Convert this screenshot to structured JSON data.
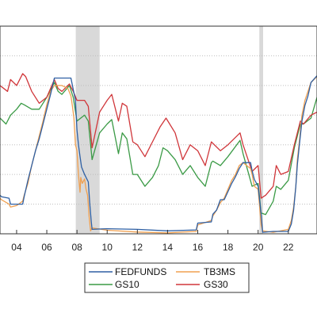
{
  "chart_data": {
    "type": "line",
    "title": "",
    "xlabel": "",
    "ylabel": "",
    "x_tick_labels": [
      "04",
      "06",
      "08",
      "10",
      "12",
      "14",
      "16",
      "18",
      "20",
      "22"
    ],
    "x_tick_years": [
      2004,
      2006,
      2008,
      2010,
      2012,
      2014,
      2016,
      2018,
      2020,
      2022
    ],
    "xlim": [
      2002.9,
      2023.9
    ],
    "ylim": [
      0,
      7
    ],
    "y_gridlines": [
      1,
      2,
      3,
      4,
      5,
      6
    ],
    "grid": true,
    "legend_position": "bottom-center",
    "recession_shading": [
      [
        2007.92,
        2009.5
      ],
      [
        2020.08,
        2020.33
      ]
    ],
    "series": [
      {
        "name": "FEDFUNDS",
        "color": "#2e5fa3",
        "x": [
          2002.9,
          2003.0,
          2003.5,
          2003.6,
          2004.0,
          2004.4,
          2004.5,
          2004.75,
          2005.0,
          2005.25,
          2005.5,
          2005.75,
          2006.0,
          2006.25,
          2006.5,
          2007.0,
          2007.6,
          2007.7,
          2007.8,
          2007.9,
          2008.0,
          2008.1,
          2008.2,
          2008.3,
          2008.5,
          2008.75,
          2008.85,
          2008.95,
          2009.0,
          2010.0,
          2012.0,
          2014.0,
          2015.9,
          2016.0,
          2016.9,
          2017.0,
          2017.25,
          2017.5,
          2017.75,
          2018.0,
          2018.25,
          2018.5,
          2018.75,
          2019.0,
          2019.5,
          2019.6,
          2019.75,
          2020.0,
          2020.2,
          2020.3,
          2021.0,
          2022.0,
          2022.2,
          2022.35,
          2022.5,
          2022.6,
          2022.75,
          2022.9,
          2023.1,
          2023.3,
          2023.5,
          2023.9
        ],
        "values": [
          1.3,
          1.25,
          1.2,
          1.0,
          1.0,
          1.0,
          1.25,
          1.8,
          2.3,
          2.8,
          3.2,
          3.7,
          4.2,
          4.7,
          5.25,
          5.25,
          5.25,
          5.0,
          4.75,
          4.5,
          3.5,
          3.0,
          2.6,
          2.25,
          2.0,
          1.75,
          1.0,
          0.4,
          0.15,
          0.17,
          0.15,
          0.1,
          0.13,
          0.36,
          0.4,
          0.66,
          0.8,
          1.15,
          1.15,
          1.42,
          1.7,
          1.92,
          2.2,
          2.4,
          2.4,
          2.13,
          1.83,
          1.6,
          0.65,
          0.05,
          0.08,
          0.08,
          0.33,
          0.8,
          1.6,
          2.33,
          3.08,
          3.8,
          4.33,
          4.65,
          5.1,
          5.33
        ]
      },
      {
        "name": "TB3MS",
        "color": "#f0a050",
        "x": [
          2002.9,
          2003.0,
          2003.5,
          2003.6,
          2004.0,
          2004.4,
          2004.5,
          2004.75,
          2005.0,
          2005.25,
          2005.5,
          2005.75,
          2006.0,
          2006.25,
          2006.5,
          2007.0,
          2007.4,
          2007.6,
          2007.7,
          2007.8,
          2007.9,
          2008.0,
          2008.1,
          2008.2,
          2008.25,
          2008.35,
          2008.5,
          2008.6,
          2008.7,
          2008.8,
          2008.9,
          2009.0,
          2010.0,
          2012.0,
          2014.0,
          2015.9,
          2016.0,
          2016.9,
          2017.0,
          2017.25,
          2017.5,
          2017.75,
          2018.0,
          2018.25,
          2018.5,
          2018.75,
          2019.0,
          2019.5,
          2019.6,
          2019.75,
          2020.0,
          2020.2,
          2020.3,
          2021.0,
          2022.0,
          2022.2,
          2022.35,
          2022.5,
          2022.6,
          2022.75,
          2022.9,
          2023.1,
          2023.3,
          2023.5,
          2023.9
        ],
        "values": [
          1.2,
          1.15,
          1.0,
          0.9,
          0.95,
          1.1,
          1.3,
          1.7,
          2.3,
          2.8,
          3.3,
          3.8,
          4.35,
          4.8,
          5.0,
          5.0,
          4.9,
          4.65,
          4.3,
          3.9,
          3.0,
          2.8,
          2.0,
          1.4,
          1.9,
          1.7,
          1.85,
          1.5,
          1.3,
          0.6,
          0.1,
          0.2,
          0.12,
          0.06,
          0.03,
          0.08,
          0.3,
          0.45,
          0.6,
          0.8,
          1.05,
          1.2,
          1.5,
          1.8,
          2.0,
          2.3,
          2.4,
          2.2,
          2.0,
          1.6,
          1.5,
          0.3,
          0.1,
          0.05,
          0.15,
          0.45,
          0.9,
          1.6,
          2.5,
          3.2,
          4.0,
          4.5,
          4.8,
          5.1,
          5.3
        ]
      },
      {
        "name": "GS10",
        "color": "#3a9a45",
        "x": [
          2002.9,
          2003.3,
          2003.6,
          2004.0,
          2004.3,
          2004.5,
          2005.0,
          2005.5,
          2006.0,
          2006.5,
          2006.75,
          2007.0,
          2007.5,
          2007.75,
          2008.0,
          2008.5,
          2008.75,
          2009.0,
          2009.5,
          2010.0,
          2010.3,
          2010.75,
          2011.0,
          2011.3,
          2011.7,
          2012.0,
          2012.5,
          2013.0,
          2013.4,
          2013.7,
          2014.0,
          2014.5,
          2015.0,
          2015.5,
          2016.0,
          2016.5,
          2016.9,
          2017.0,
          2017.5,
          2018.0,
          2018.8,
          2019.0,
          2019.6,
          2020.0,
          2020.2,
          2020.5,
          2021.0,
          2021.2,
          2021.5,
          2022.0,
          2022.4,
          2022.8,
          2023.0,
          2023.5,
          2023.9
        ],
        "values": [
          3.9,
          3.7,
          4.0,
          4.2,
          4.4,
          4.35,
          4.2,
          4.2,
          4.6,
          5.1,
          4.8,
          4.7,
          5.0,
          4.6,
          3.8,
          4.0,
          3.8,
          2.5,
          3.4,
          3.7,
          3.85,
          2.7,
          3.4,
          3.2,
          2.0,
          2.0,
          1.6,
          1.9,
          2.3,
          2.9,
          2.8,
          2.5,
          2.0,
          2.3,
          1.9,
          1.6,
          2.4,
          2.45,
          2.3,
          2.6,
          3.15,
          2.7,
          1.6,
          1.7,
          0.7,
          0.65,
          1.1,
          1.6,
          1.5,
          1.8,
          2.9,
          3.7,
          3.7,
          3.9,
          4.6
        ]
      },
      {
        "name": "GS30",
        "color": "#d0363a",
        "x": [
          2002.9,
          2003.4,
          2003.6,
          2004.0,
          2004.4,
          2004.6,
          2005.0,
          2005.5,
          2006.0,
          2006.5,
          2006.75,
          2007.0,
          2007.5,
          2007.75,
          2008.0,
          2008.5,
          2008.75,
          2009.0,
          2009.5,
          2010.0,
          2010.3,
          2010.75,
          2011.0,
          2011.3,
          2011.7,
          2012.0,
          2012.5,
          2013.0,
          2013.5,
          2013.9,
          2014.5,
          2015.0,
          2015.5,
          2016.0,
          2016.5,
          2016.9,
          2017.5,
          2018.0,
          2018.8,
          2019.0,
          2019.6,
          2020.0,
          2020.2,
          2020.5,
          2021.0,
          2021.2,
          2021.5,
          2022.0,
          2022.4,
          2022.8,
          2023.0,
          2023.5,
          2023.9
        ],
        "values": [
          5.0,
          4.8,
          5.2,
          5.0,
          5.4,
          5.3,
          4.8,
          4.4,
          4.6,
          5.2,
          4.9,
          4.8,
          5.05,
          4.8,
          4.5,
          4.5,
          4.3,
          2.9,
          4.1,
          4.5,
          4.7,
          3.8,
          4.4,
          4.3,
          3.1,
          3.0,
          2.6,
          3.1,
          3.6,
          3.9,
          3.4,
          2.5,
          3.0,
          2.8,
          2.3,
          3.1,
          2.8,
          3.0,
          3.4,
          3.0,
          2.1,
          2.3,
          1.2,
          1.3,
          1.6,
          2.3,
          2.0,
          2.1,
          3.0,
          3.8,
          3.7,
          4.0,
          4.1
        ]
      }
    ]
  }
}
